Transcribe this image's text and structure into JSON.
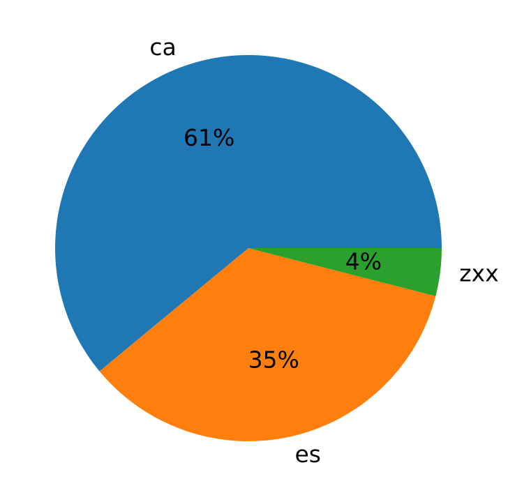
{
  "chart_data": {
    "type": "pie",
    "categories": [
      "ca",
      "es",
      "zxx"
    ],
    "values": [
      61,
      35,
      4
    ],
    "value_labels": [
      "61%",
      "35%",
      "4%"
    ],
    "colors": [
      "#1f77b4",
      "#ff7f0e",
      "#2ca02c"
    ]
  }
}
